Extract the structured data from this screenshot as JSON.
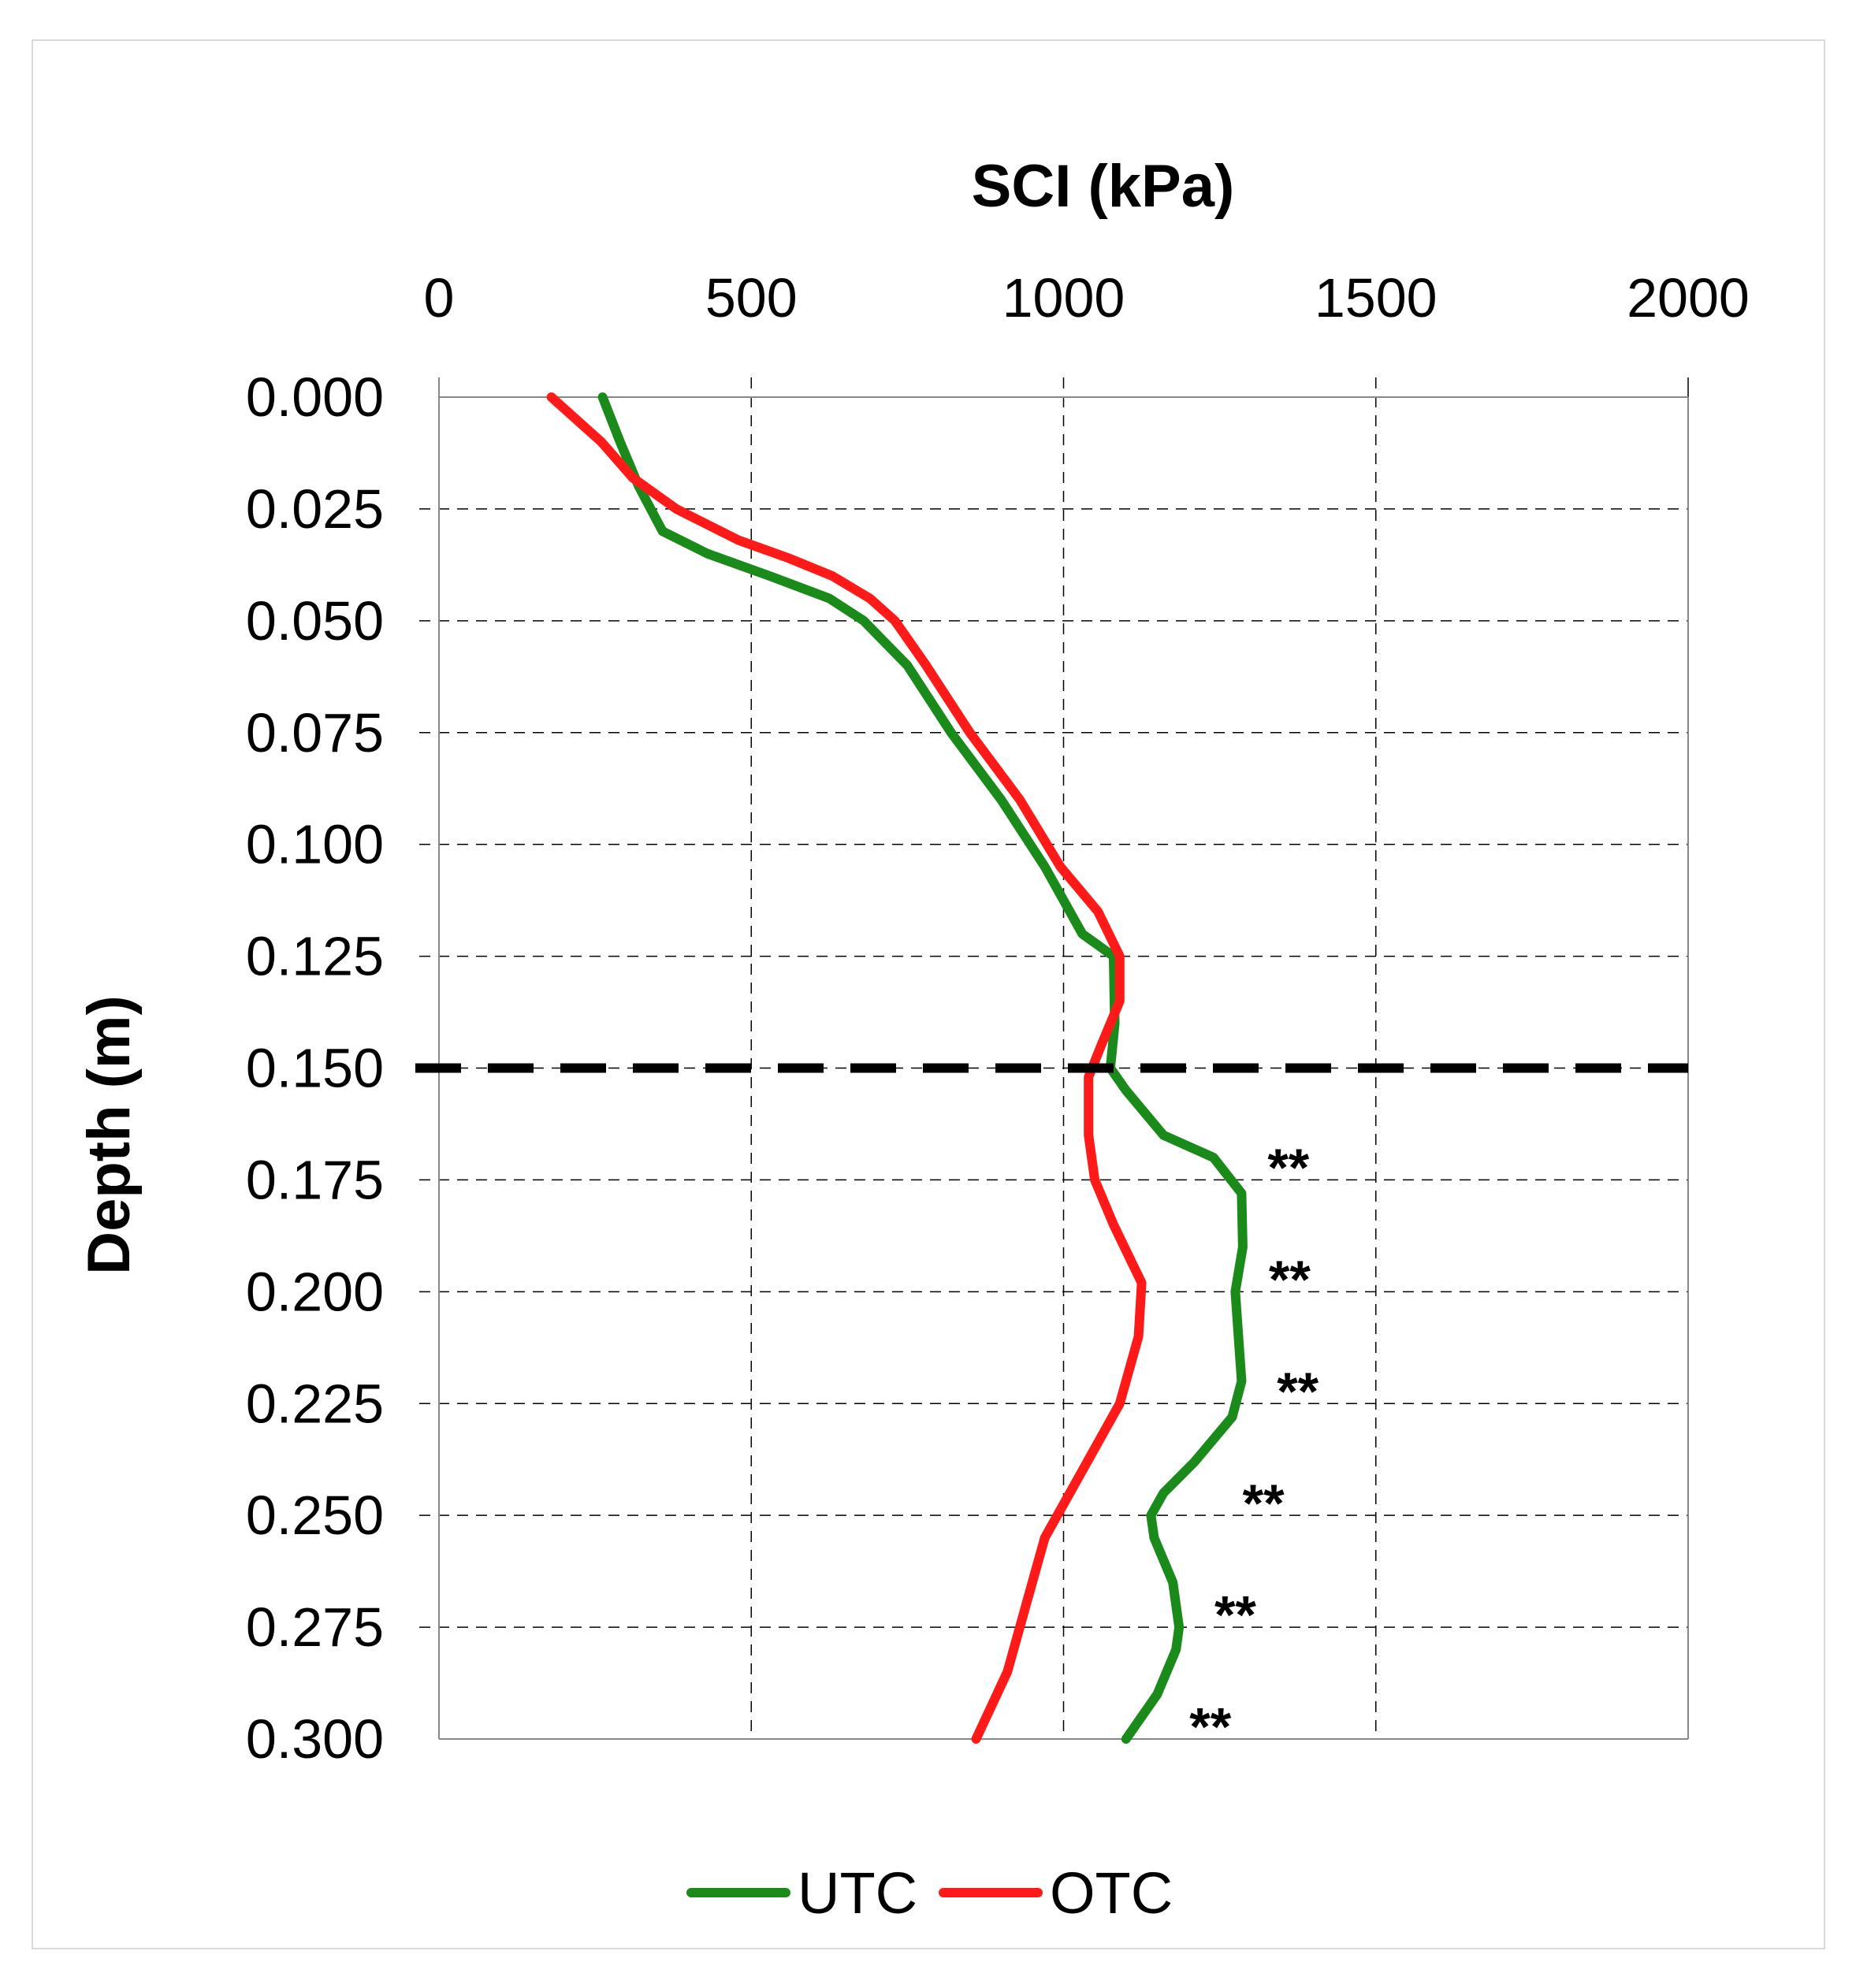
{
  "chart_data": {
    "type": "line",
    "orientation": "depth-profile",
    "xlabel": "SCI (kPa)",
    "ylabel": "Depth (m)",
    "xlim": [
      0,
      2000
    ],
    "ylim": [
      0.0,
      0.3
    ],
    "x_ticks": [
      "0",
      "500",
      "1000",
      "1500",
      "2000"
    ],
    "x_tick_values": [
      0,
      500,
      1000,
      1500,
      2000
    ],
    "y_ticks": [
      "0.000",
      "0.025",
      "0.050",
      "0.075",
      "0.100",
      "0.125",
      "0.150",
      "0.175",
      "0.200",
      "0.225",
      "0.250",
      "0.275",
      "0.300"
    ],
    "y_tick_values": [
      0.0,
      0.025,
      0.05,
      0.075,
      0.1,
      0.125,
      0.15,
      0.175,
      0.2,
      0.225,
      0.25,
      0.275,
      0.3
    ],
    "grid": true,
    "reference_line_depth": 0.15,
    "legend_position": "bottom",
    "series": [
      {
        "name": "UTC",
        "color": "#1a8a1a",
        "points": [
          [
            262,
            0.0
          ],
          [
            290,
            0.01
          ],
          [
            320,
            0.02
          ],
          [
            358,
            0.03
          ],
          [
            430,
            0.035
          ],
          [
            530,
            0.04
          ],
          [
            625,
            0.045
          ],
          [
            680,
            0.05
          ],
          [
            750,
            0.06
          ],
          [
            820,
            0.075
          ],
          [
            900,
            0.09
          ],
          [
            970,
            0.105
          ],
          [
            1030,
            0.12
          ],
          [
            1080,
            0.125
          ],
          [
            1082,
            0.14
          ],
          [
            1075,
            0.15
          ],
          [
            1100,
            0.155
          ],
          [
            1160,
            0.165
          ],
          [
            1240,
            0.17
          ],
          [
            1285,
            0.178
          ],
          [
            1287,
            0.19
          ],
          [
            1275,
            0.2
          ],
          [
            1280,
            0.21
          ],
          [
            1285,
            0.22
          ],
          [
            1270,
            0.228
          ],
          [
            1210,
            0.238
          ],
          [
            1160,
            0.245
          ],
          [
            1140,
            0.25
          ],
          [
            1145,
            0.255
          ],
          [
            1175,
            0.265
          ],
          [
            1185,
            0.275
          ],
          [
            1180,
            0.28
          ],
          [
            1150,
            0.29
          ],
          [
            1100,
            0.3
          ]
        ]
      },
      {
        "name": "OTC",
        "color": "#ff1a1a",
        "points": [
          [
            180,
            0.0
          ],
          [
            260,
            0.01
          ],
          [
            310,
            0.018
          ],
          [
            380,
            0.025
          ],
          [
            480,
            0.032
          ],
          [
            560,
            0.036
          ],
          [
            630,
            0.04
          ],
          [
            690,
            0.045
          ],
          [
            730,
            0.05
          ],
          [
            780,
            0.06
          ],
          [
            850,
            0.075
          ],
          [
            930,
            0.09
          ],
          [
            995,
            0.105
          ],
          [
            1055,
            0.115
          ],
          [
            1090,
            0.125
          ],
          [
            1090,
            0.135
          ],
          [
            1060,
            0.145
          ],
          [
            1040,
            0.152
          ],
          [
            1040,
            0.165
          ],
          [
            1050,
            0.175
          ],
          [
            1080,
            0.185
          ],
          [
            1125,
            0.198
          ],
          [
            1120,
            0.21
          ],
          [
            1090,
            0.225
          ],
          [
            1030,
            0.24
          ],
          [
            970,
            0.255
          ],
          [
            940,
            0.27
          ],
          [
            910,
            0.285
          ],
          [
            860,
            0.3
          ]
        ]
      }
    ],
    "annotations": [
      {
        "text": "**",
        "x": 1360,
        "y": 0.17
      },
      {
        "text": "**",
        "x": 1362,
        "y": 0.195
      },
      {
        "text": "**",
        "x": 1375,
        "y": 0.22
      },
      {
        "text": "**",
        "x": 1320,
        "y": 0.245
      },
      {
        "text": "**",
        "x": 1275,
        "y": 0.27
      },
      {
        "text": "**",
        "x": 1235,
        "y": 0.295
      }
    ]
  }
}
